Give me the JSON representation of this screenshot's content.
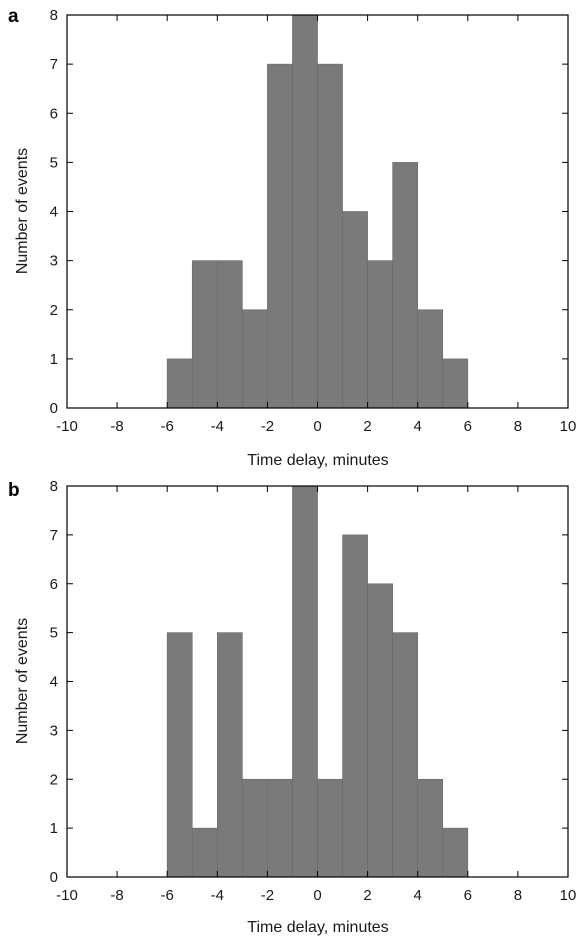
{
  "bar_color": "#7a7a7a",
  "bar_stroke": "#6a6a6a",
  "chart_data": [
    {
      "panel_label": "a",
      "type": "bar",
      "title": "",
      "xlabel": "Time delay, minutes",
      "ylabel": "Number of events",
      "xlim": [
        -10,
        10
      ],
      "ylim": [
        0,
        8
      ],
      "x_ticks": [
        -10,
        -8,
        -6,
        -4,
        -2,
        0,
        2,
        4,
        6,
        8,
        10
      ],
      "y_ticks": [
        0,
        1,
        2,
        3,
        4,
        5,
        6,
        7,
        8
      ],
      "bin_width": 1,
      "bins": [
        {
          "x0": -6,
          "x1": -5,
          "value": 1
        },
        {
          "x0": -5,
          "x1": -4,
          "value": 3
        },
        {
          "x0": -4,
          "x1": -3,
          "value": 3
        },
        {
          "x0": -3,
          "x1": -2,
          "value": 2
        },
        {
          "x0": -2,
          "x1": -1,
          "value": 7
        },
        {
          "x0": -1,
          "x1": 0,
          "value": 8
        },
        {
          "x0": 0,
          "x1": 1,
          "value": 7
        },
        {
          "x0": 1,
          "x1": 2,
          "value": 4
        },
        {
          "x0": 2,
          "x1": 3,
          "value": 3
        },
        {
          "x0": 3,
          "x1": 4,
          "value": 5
        },
        {
          "x0": 4,
          "x1": 5,
          "value": 2
        },
        {
          "x0": 5,
          "x1": 6,
          "value": 1
        }
      ],
      "grid": false
    },
    {
      "panel_label": "b",
      "type": "bar",
      "title": "",
      "xlabel": "Time delay, minutes",
      "ylabel": "Number of events",
      "xlim": [
        -10,
        10
      ],
      "ylim": [
        0,
        8
      ],
      "x_ticks": [
        -10,
        -8,
        -6,
        -4,
        -2,
        0,
        2,
        4,
        6,
        8,
        10
      ],
      "y_ticks": [
        0,
        1,
        2,
        3,
        4,
        5,
        6,
        7,
        8
      ],
      "bin_width": 1,
      "bins": [
        {
          "x0": -6,
          "x1": -5,
          "value": 5
        },
        {
          "x0": -5,
          "x1": -4,
          "value": 1
        },
        {
          "x0": -4,
          "x1": -3,
          "value": 5
        },
        {
          "x0": -3,
          "x1": -2,
          "value": 2
        },
        {
          "x0": -2,
          "x1": -1,
          "value": 2
        },
        {
          "x0": -1,
          "x1": 0,
          "value": 8
        },
        {
          "x0": 0,
          "x1": 1,
          "value": 2
        },
        {
          "x0": 1,
          "x1": 2,
          "value": 7
        },
        {
          "x0": 2,
          "x1": 3,
          "value": 6
        },
        {
          "x0": 3,
          "x1": 4,
          "value": 5
        },
        {
          "x0": 4,
          "x1": 5,
          "value": 2
        },
        {
          "x0": 5,
          "x1": 6,
          "value": 1
        }
      ],
      "grid": false
    }
  ]
}
